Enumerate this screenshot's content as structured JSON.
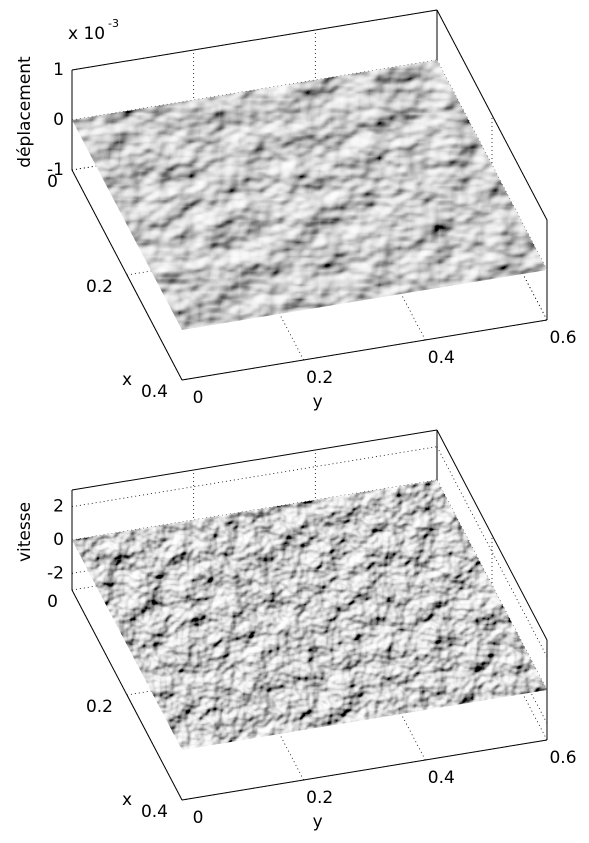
{
  "chart_data": [
    {
      "type": "surface",
      "zlabel": "déplacement",
      "xlabel": "x",
      "ylabel": "y",
      "zscale": {
        "base": "x 10",
        "exponent": -3
      },
      "xlim": [
        0,
        0.4
      ],
      "ylim": [
        0,
        0.6
      ],
      "zlim": [
        -1,
        1
      ],
      "xticks": [
        0,
        0.2,
        0.4
      ],
      "yticks": [
        0,
        0.2,
        0.4,
        0.6
      ],
      "zticks": [
        -1,
        0,
        1
      ],
      "grid": true
    },
    {
      "type": "surface",
      "zlabel": "vitesse",
      "xlabel": "x",
      "ylabel": "y",
      "xlim": [
        0,
        0.4
      ],
      "ylim": [
        0,
        0.6
      ],
      "zlim": [
        -3,
        3
      ],
      "xticks": [
        0,
        0.2,
        0.4
      ],
      "yticks": [
        0,
        0.2,
        0.4,
        0.6
      ],
      "zticks": [
        -2,
        0,
        2
      ],
      "grid": true
    }
  ]
}
